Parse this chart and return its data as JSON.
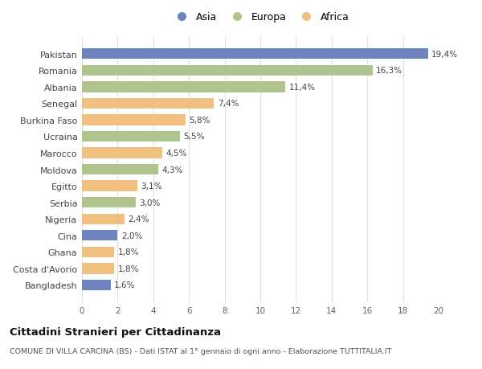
{
  "countries": [
    "Pakistan",
    "Romania",
    "Albania",
    "Senegal",
    "Burkina Faso",
    "Ucraina",
    "Marocco",
    "Moldova",
    "Egitto",
    "Serbia",
    "Nigeria",
    "Cina",
    "Ghana",
    "Costa d'Avorio",
    "Bangladesh"
  ],
  "values": [
    19.4,
    16.3,
    11.4,
    7.4,
    5.8,
    5.5,
    4.5,
    4.3,
    3.1,
    3.0,
    2.4,
    2.0,
    1.8,
    1.8,
    1.6
  ],
  "continents": [
    "Asia",
    "Europa",
    "Europa",
    "Africa",
    "Africa",
    "Europa",
    "Africa",
    "Europa",
    "Africa",
    "Europa",
    "Africa",
    "Asia",
    "Africa",
    "Africa",
    "Asia"
  ],
  "colors": {
    "Asia": "#6e84be",
    "Europa": "#b0c48e",
    "Africa": "#f0c080"
  },
  "legend_labels": [
    "Asia",
    "Europa",
    "Africa"
  ],
  "title": "Cittadini Stranieri per Cittadinanza",
  "subtitle": "COMUNE DI VILLA CARCINA (BS) - Dati ISTAT al 1° gennaio di ogni anno - Elaborazione TUTTITALIA.IT",
  "xlim": [
    0,
    20
  ],
  "xticks": [
    0,
    2,
    4,
    6,
    8,
    10,
    12,
    14,
    16,
    18,
    20
  ],
  "background_color": "#ffffff",
  "grid_color": "#e0e0e0"
}
